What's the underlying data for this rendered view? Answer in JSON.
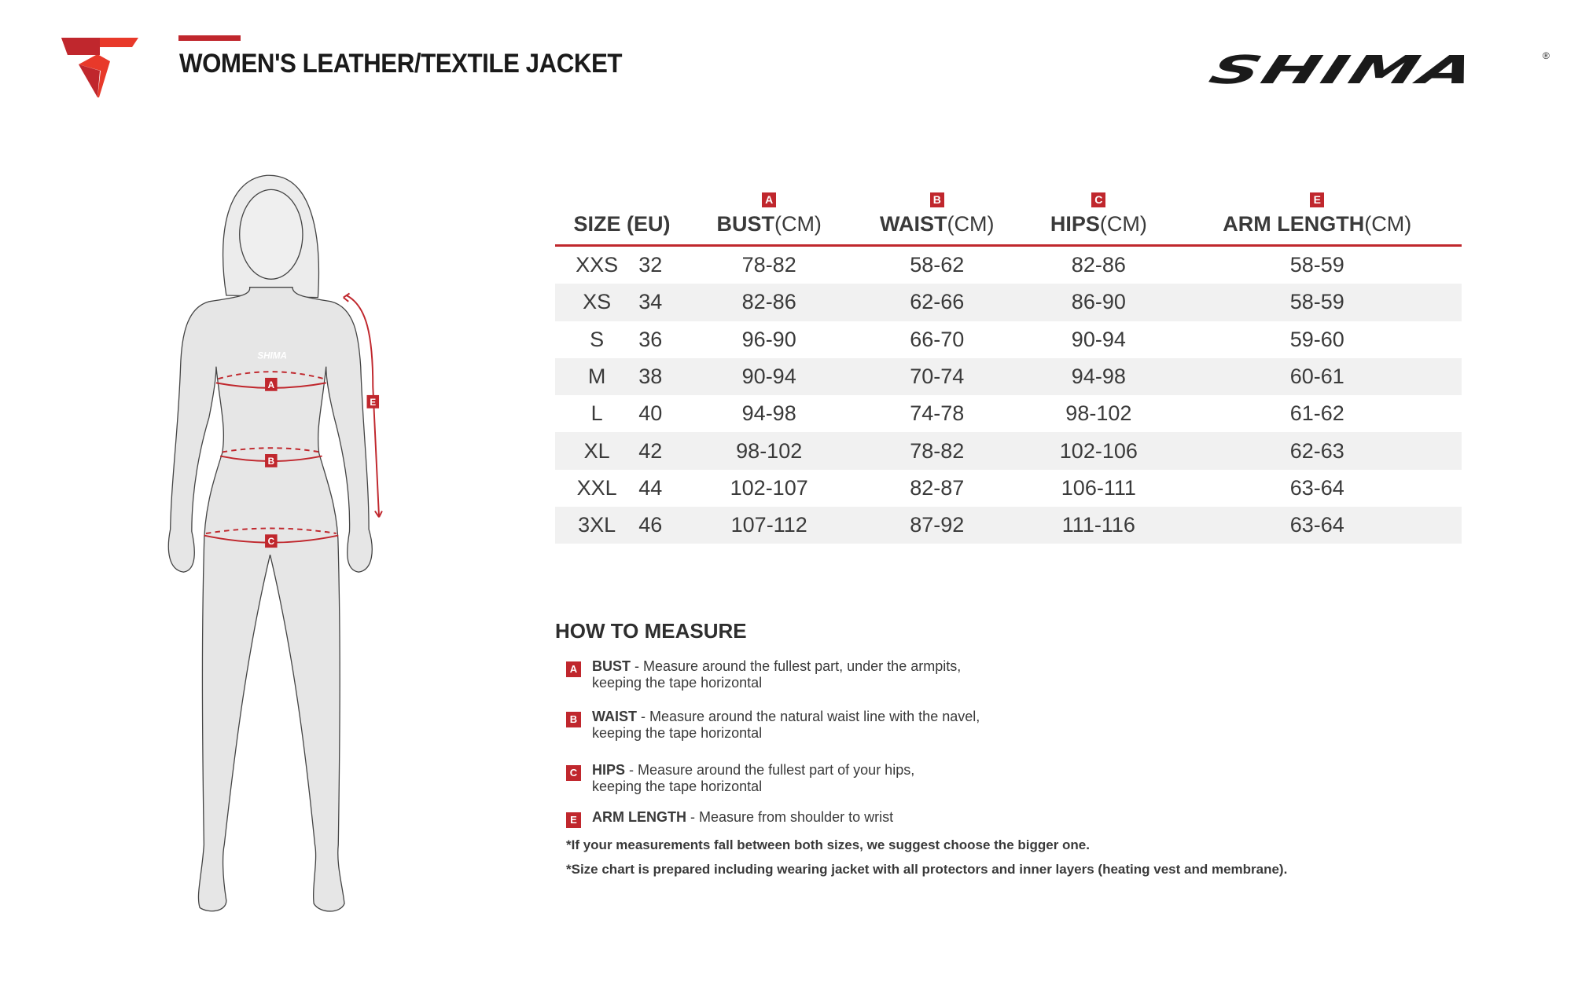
{
  "header": {
    "title": "WOMEN'S LEATHER/TEXTILE JACKET",
    "brand": "SHIMA",
    "brand_mark": "®",
    "accent_color": "#c0272d"
  },
  "table": {
    "columns": [
      {
        "label": "SIZE (EU)",
        "badge": "",
        "unit": ""
      },
      {
        "label": "BUST",
        "badge": "A",
        "unit": "(CM)"
      },
      {
        "label": "WAIST",
        "badge": "B",
        "unit": "(CM)"
      },
      {
        "label": "HIPS",
        "badge": "C",
        "unit": "(CM)"
      },
      {
        "label": "ARM LENGTH",
        "badge": "E",
        "unit": "(CM)"
      }
    ],
    "rows": [
      {
        "size": "XXS",
        "eu": "32",
        "bust": "78-82",
        "waist": "58-62",
        "hips": "82-86",
        "arm": "58-59"
      },
      {
        "size": "XS",
        "eu": "34",
        "bust": "82-86",
        "waist": "62-66",
        "hips": "86-90",
        "arm": "58-59"
      },
      {
        "size": "S",
        "eu": "36",
        "bust": "96-90",
        "waist": "66-70",
        "hips": "90-94",
        "arm": "59-60"
      },
      {
        "size": "M",
        "eu": "38",
        "bust": "90-94",
        "waist": "70-74",
        "hips": "94-98",
        "arm": "60-61"
      },
      {
        "size": "L",
        "eu": "40",
        "bust": "94-98",
        "waist": "74-78",
        "hips": "98-102",
        "arm": "61-62"
      },
      {
        "size": "XL",
        "eu": "42",
        "bust": "98-102",
        "waist": "78-82",
        "hips": "102-106",
        "arm": "62-63"
      },
      {
        "size": "XXL",
        "eu": "44",
        "bust": "102-107",
        "waist": "82-87",
        "hips": "106-111",
        "arm": "63-64"
      },
      {
        "size": "3XL",
        "eu": "46",
        "bust": "107-112",
        "waist": "87-92",
        "hips": "111-116",
        "arm": "63-64"
      }
    ]
  },
  "figure": {
    "markers": [
      "A",
      "B",
      "C",
      "E"
    ],
    "shirt_logo": "SHIMA"
  },
  "how_to": {
    "title": "HOW TO MEASURE",
    "items": [
      {
        "badge": "A",
        "name": "BUST",
        "line1": " - Measure around the fullest part, under the armpits,",
        "line2": "keeping the tape horizontal"
      },
      {
        "badge": "B",
        "name": "WAIST",
        "line1": " - Measure around the natural waist line with the navel,",
        "line2": "keeping the tape horizontal"
      },
      {
        "badge": "C",
        "name": "HIPS",
        "line1": " - Measure around the fullest part of your hips,",
        "line2": "keeping the tape horizontal"
      },
      {
        "badge": "E",
        "name": "ARM LENGTH",
        "line1": " - Measure from shoulder to wrist",
        "line2": ""
      }
    ],
    "notes": [
      "*If your measurements fall between both sizes, we suggest choose the bigger one.",
      "*Size chart is prepared including wearing jacket with all protectors and inner layers (heating vest and membrane)."
    ]
  }
}
